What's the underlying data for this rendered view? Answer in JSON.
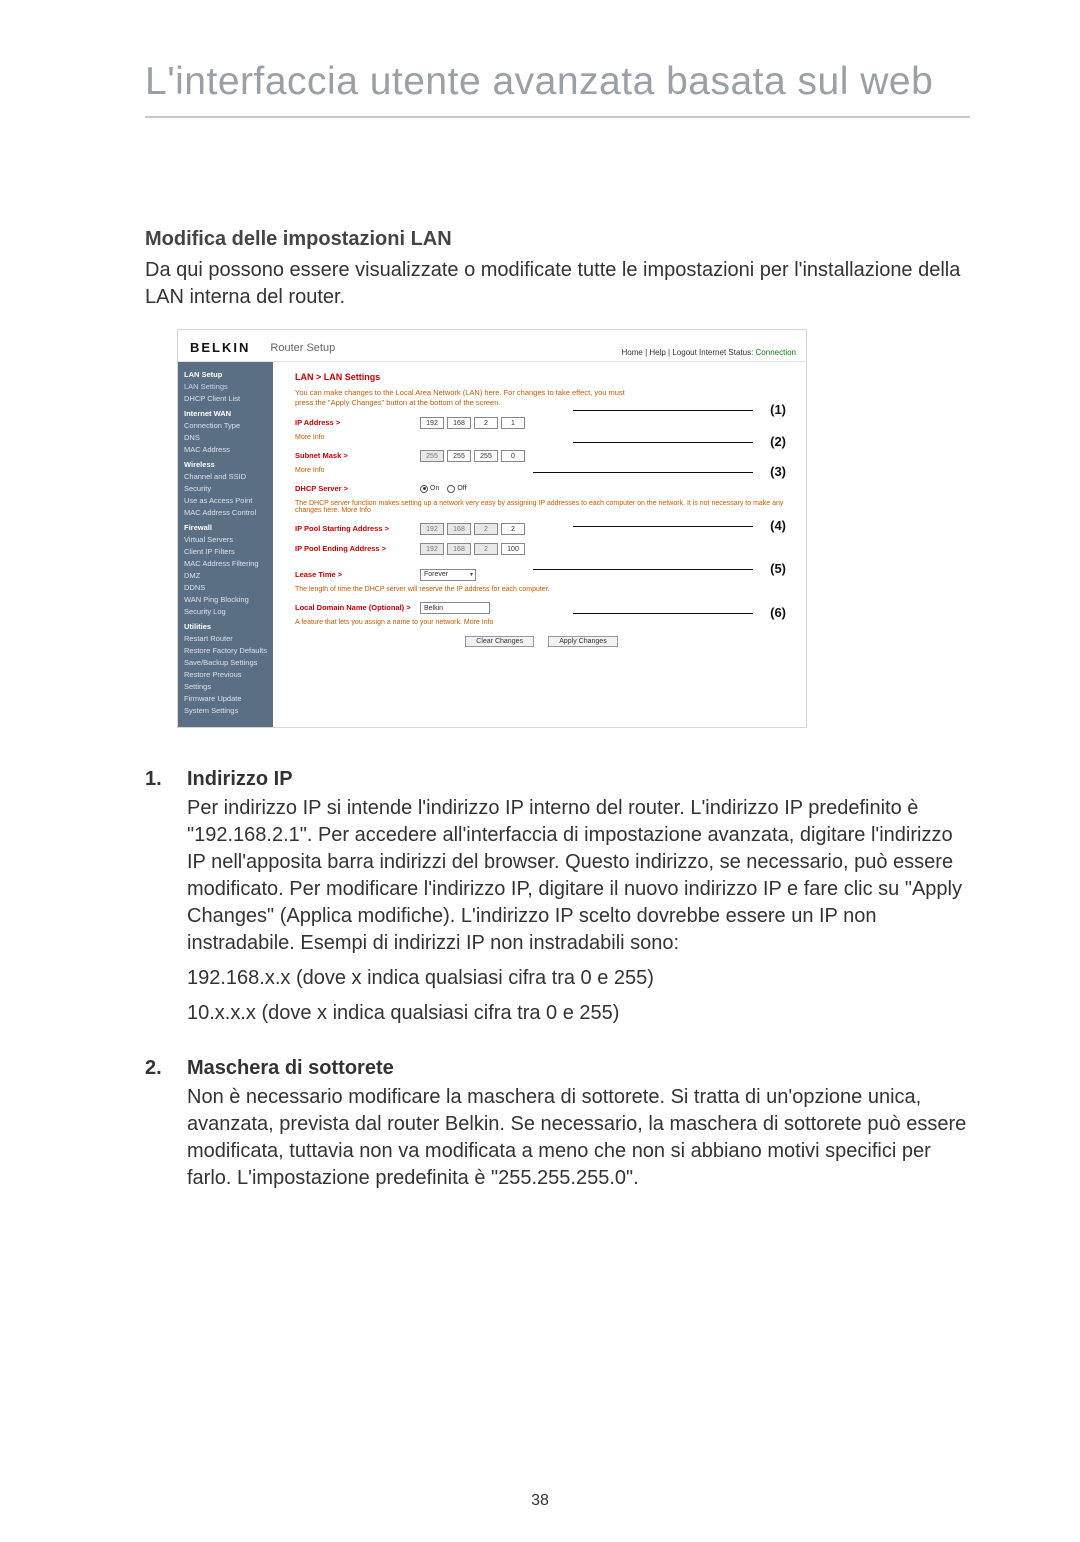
{
  "page_title": "L'interfaccia utente avanzata basata sul web",
  "section_heading": "Modifica delle impostazioni LAN",
  "intro": "Da qui possono essere visualizzate o modificate tutte le impostazioni per l'installazione della LAN interna del router.",
  "shot": {
    "brand": "BELKIN",
    "router_setup": "Router Setup",
    "status_prefix": "Home | Help | Logout    Internet Status: ",
    "status_value": "Connection",
    "sidebar": {
      "groups": [
        {
          "section": "LAN Setup",
          "items": [
            "LAN Settings",
            "DHCP Client List"
          ]
        },
        {
          "section": "Internet WAN",
          "items": [
            "Connection Type",
            "DNS",
            "MAC Address"
          ]
        },
        {
          "section": "Wireless",
          "items": [
            "Channel and SSID",
            "Security",
            "Use as Access Point",
            "MAC Address Control"
          ]
        },
        {
          "section": "Firewall",
          "items": [
            "Virtual Servers",
            "Client IP Filters",
            "MAC Address Filtering",
            "DMZ",
            "DDNS",
            "WAN Ping Blocking",
            "Security Log"
          ]
        },
        {
          "section": "Utilities",
          "items": [
            "Restart Router",
            "Restore Factory Defaults",
            "Save/Backup Settings",
            "Restore Previous Settings",
            "Firmware Update",
            "System Settings"
          ]
        }
      ]
    },
    "breadcrumb": "LAN > LAN Settings",
    "desc": "You can make changes to the Local Area Network (LAN) here. For changes to take effect, you must press the \"Apply Changes\" button at the bottom of the screen.",
    "rows": {
      "ip": {
        "label": "IP Address >",
        "oct": [
          "192",
          "168",
          "2",
          "1"
        ],
        "more": "More Info"
      },
      "mask": {
        "label": "Subnet Mask >",
        "oct": [
          "255",
          "255",
          "255",
          "0"
        ],
        "more": "More Info"
      },
      "dhcp": {
        "label": "DHCP Server  >",
        "on": "On",
        "off": "Off",
        "desc": "The DHCP server function makes setting up a network very easy by assigning IP addresses to each computer on the network. It is not necessary to make any changes here. ",
        "more": "More Info"
      },
      "pool_start": {
        "label": "IP Pool Starting Address >",
        "oct": [
          "192",
          "168",
          "2",
          "2"
        ]
      },
      "pool_end": {
        "label": "IP Pool Ending Address >",
        "oct": [
          "192",
          "168",
          "2",
          "100"
        ]
      },
      "lease": {
        "label": "Lease Time >",
        "value": "Forever",
        "desc": "The length of time the DHCP server will reserve the IP address for each computer."
      },
      "domain": {
        "label": "Local Domain Name  (Optional) >",
        "value": "Belkin",
        "desc": "A feature that lets you assign a name to your network. ",
        "more": "More Info"
      }
    },
    "btn_clear": "Clear Changes",
    "btn_apply": "Apply Changes",
    "callouts": [
      "(1)",
      "(2)",
      "(3)",
      "(4)",
      "(5)",
      "(6)"
    ]
  },
  "list": [
    {
      "num": "1.",
      "title": "Indirizzo IP",
      "paras": [
        "Per indirizzo IP si intende l'indirizzo IP interno del router. L'indirizzo IP predefinito è \"192.168.2.1\". Per accedere all'interfaccia di impostazione avanzata, digitare l'indirizzo IP nell'apposita barra indirizzi del browser. Questo indirizzo, se necessario, può essere modificato. Per modificare l'indirizzo IP, digitare il nuovo indirizzo IP e fare clic su \"Apply Changes\" (Applica modifiche). L'indirizzo IP scelto dovrebbe essere un IP non instradabile. Esempi di indirizzi IP non instradabili sono:",
        "192.168.x.x (dove x indica qualsiasi cifra tra 0 e 255)",
        "10.x.x.x (dove x indica qualsiasi cifra tra 0 e 255)"
      ]
    },
    {
      "num": "2.",
      "title": "Maschera di sottorete",
      "paras": [
        "Non è necessario modificare la maschera di sottorete. Si tratta di un'opzione unica, avanzata, prevista dal router Belkin. Se necessario, la maschera di sottorete può essere modificata, tuttavia non va modificata a meno che non si abbiano motivi specifici per farlo. L'impostazione predefinita è \"255.255.255.0\"."
      ]
    }
  ],
  "page_number": "38"
}
